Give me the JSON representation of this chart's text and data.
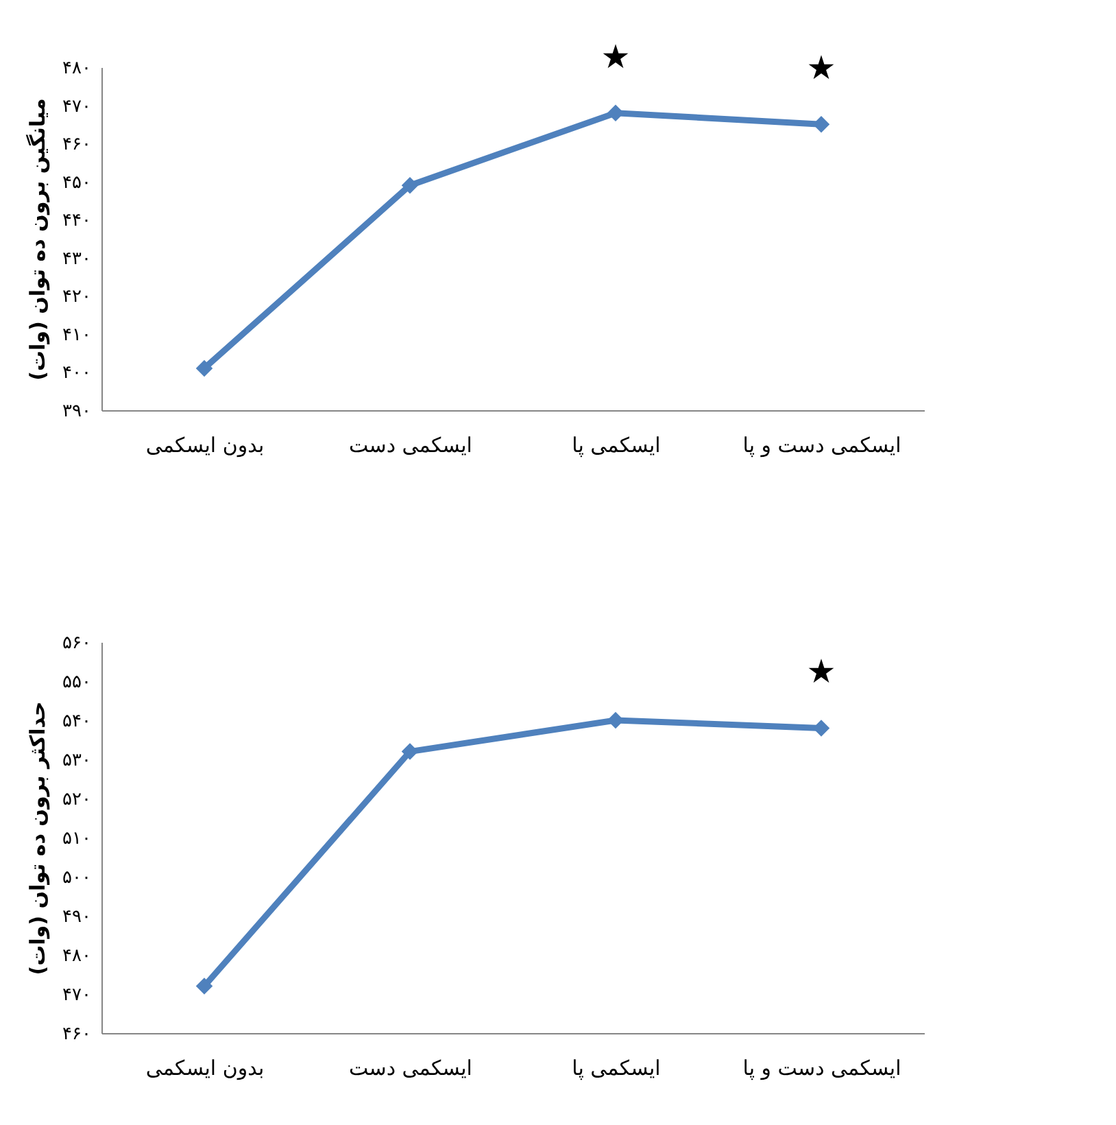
{
  "chart_data": [
    {
      "type": "line",
      "ylabel": "میانگین برون ده توان (وات)",
      "categories": [
        "بدون ایسکمی",
        "ایسکمی دست",
        "ایسکمی پا",
        "ایسکمی دست و پا"
      ],
      "series": [
        {
          "color": "#4f81bd",
          "values": [
            401,
            449,
            468,
            465
          ]
        }
      ],
      "ylim": [
        390,
        480
      ],
      "yticks": [
        {
          "value": 390,
          "label": "۳۹۰"
        },
        {
          "value": 400,
          "label": "۴۰۰"
        },
        {
          "value": 410,
          "label": "۴۱۰"
        },
        {
          "value": 420,
          "label": "۴۲۰"
        },
        {
          "value": 430,
          "label": "۴۳۰"
        },
        {
          "value": 440,
          "label": "۴۴۰"
        },
        {
          "value": 450,
          "label": "۴۵۰"
        },
        {
          "value": 460,
          "label": "۴۶۰"
        },
        {
          "value": 470,
          "label": "۴۷۰"
        },
        {
          "value": 480,
          "label": "۴۸۰"
        }
      ],
      "marker": "diamond",
      "grid": false,
      "annotations": [
        {
          "text": "★",
          "x": "ایسکمی پا",
          "y": 468
        },
        {
          "text": "★",
          "x": "ایسکمی دست و پا",
          "y": 465
        }
      ]
    },
    {
      "type": "line",
      "ylabel": "حداکثر برون ده توان (وات)",
      "categories": [
        "بدون ایسکمی",
        "ایسکمی دست",
        "ایسکمی پا",
        "ایسکمی دست و پا"
      ],
      "series": [
        {
          "color": "#4f81bd",
          "values": [
            472,
            532,
            540,
            538
          ]
        }
      ],
      "ylim": [
        460,
        560
      ],
      "yticks": [
        {
          "value": 460,
          "label": "۴۶۰"
        },
        {
          "value": 470,
          "label": "۴۷۰"
        },
        {
          "value": 480,
          "label": "۴۸۰"
        },
        {
          "value": 490,
          "label": "۴۹۰"
        },
        {
          "value": 500,
          "label": "۵۰۰"
        },
        {
          "value": 510,
          "label": "۵۱۰"
        },
        {
          "value": 520,
          "label": "۵۲۰"
        },
        {
          "value": 530,
          "label": "۵۳۰"
        },
        {
          "value": 540,
          "label": "۵۴۰"
        },
        {
          "value": 550,
          "label": "۵۵۰"
        },
        {
          "value": 560,
          "label": "۵۶۰"
        }
      ],
      "marker": "diamond",
      "grid": false,
      "annotations": [
        {
          "text": "★",
          "x": "ایسکمی دست و پا",
          "y": 538
        }
      ]
    }
  ]
}
